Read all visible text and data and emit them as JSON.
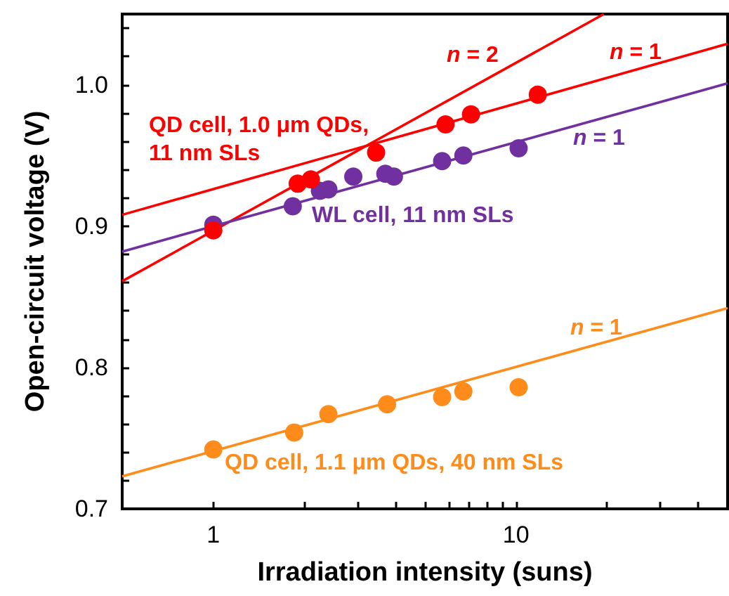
{
  "chart_data": {
    "type": "scatter",
    "xlabel": "Irradiation intensity (suns)",
    "ylabel": "Open-circuit voltage (V)",
    "log": "x",
    "marker": "circle",
    "xlim": [
      0.5,
      50
    ],
    "ylim": [
      0.7,
      1.05
    ],
    "xticks": [
      1,
      10,
      {
        "value": 2,
        "label": null
      },
      {
        "value": 3,
        "label": null
      },
      {
        "value": 4,
        "label": null
      },
      {
        "value": 5,
        "label": null
      },
      {
        "value": 6,
        "label": null
      },
      {
        "value": 7,
        "label": null
      },
      {
        "value": 8,
        "label": null
      },
      {
        "value": 9,
        "label": null
      },
      {
        "value": 20,
        "label": null
      },
      {
        "value": 30,
        "label": null
      },
      {
        "value": 40,
        "label": null
      }
    ],
    "yticks": [
      0.7,
      0.8,
      0.9,
      {
        "value": 1,
        "label": "1.0"
      },
      {
        "value": 0.72,
        "label": null
      },
      {
        "value": 0.74,
        "label": null
      },
      {
        "value": 0.76,
        "label": null
      },
      {
        "value": 0.78,
        "label": null
      },
      {
        "value": 0.82,
        "label": null
      },
      {
        "value": 0.84,
        "label": null
      },
      {
        "value": 0.86,
        "label": null
      },
      {
        "value": 0.88,
        "label": null
      },
      {
        "value": 0.92,
        "label": null
      },
      {
        "value": 0.94,
        "label": null
      },
      {
        "value": 0.96,
        "label": null
      },
      {
        "value": 0.98,
        "label": null
      },
      {
        "value": 1.02,
        "label": null
      },
      {
        "value": 1.04,
        "label": null
      }
    ],
    "series": [
      {
        "name": "QD cell, 1.0 μm QDs, 11 nm SLs",
        "color": "#ff0000",
        "x": [
          1,
          1.9,
          2.1,
          3.45,
          5.85,
          7.1,
          11.8
        ],
        "values": [
          0.897,
          0.93,
          0.933,
          0.952,
          0.972,
          0.979,
          0.993
        ]
      },
      {
        "name": "WL cell, 11 nm SLs",
        "color": "#7030a0",
        "x": [
          1,
          1.83,
          2.25,
          2.4,
          2.9,
          3.7,
          3.95,
          5.7,
          6.7,
          10.2
        ],
        "values": [
          0.901,
          0.914,
          0.925,
          0.926,
          0.935,
          0.937,
          0.935,
          0.946,
          0.95,
          0.955
        ]
      },
      {
        "name": "QD cell, 1.1 μm QDs, 40 nm SLs",
        "color": "#ff8c1a",
        "x": [
          1,
          1.85,
          2.4,
          3.75,
          5.7,
          6.7,
          10.2
        ],
        "values": [
          0.742,
          0.754,
          0.767,
          0.774,
          0.779,
          0.783,
          0.786
        ]
      },
      {
        "name": "n = 2",
        "type": "line",
        "marker": "none",
        "color": "#ff0000",
        "x": [
          0.5,
          19.5
        ],
        "values": [
          0.861,
          1.05
        ]
      },
      {
        "name": "n = 1",
        "type": "line",
        "marker": "none",
        "color": "#ff0000",
        "x": [
          0.5,
          50
        ],
        "values": [
          0.908,
          1.029
        ]
      },
      {
        "name": "n = 1",
        "type": "line",
        "marker": "none",
        "color": "#7030a0",
        "x": [
          0.5,
          50
        ],
        "values": [
          0.882,
          1.001
        ]
      },
      {
        "name": "n = 1",
        "type": "line",
        "marker": "none",
        "color": "#ff8c1a",
        "x": [
          0.5,
          50
        ],
        "values": [
          0.723,
          0.842
        ]
      }
    ]
  }
}
